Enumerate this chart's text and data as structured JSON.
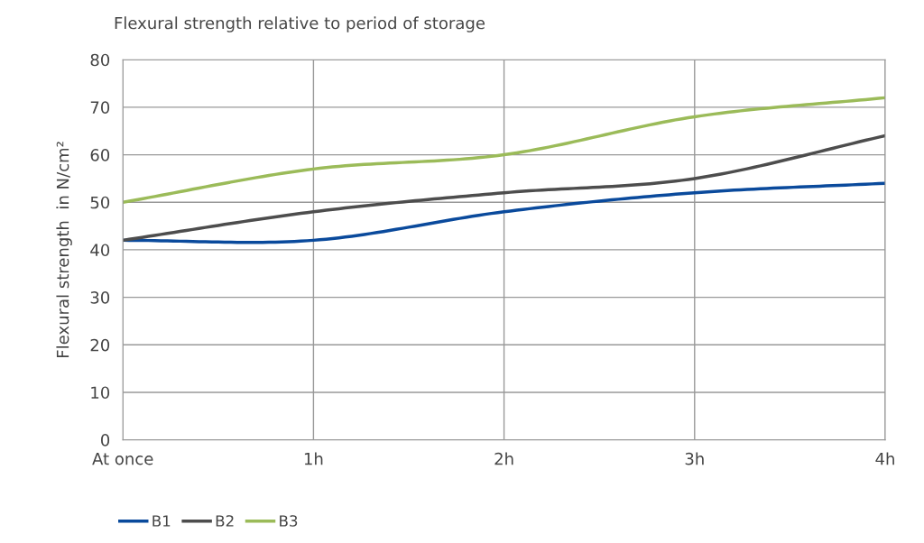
{
  "chart_data": {
    "type": "line",
    "title": "Flexural strength relative to period of storage",
    "ylabel": "Flexural strength  in N/cm²",
    "categories": [
      "At once",
      "1h",
      "2h",
      "3h",
      "4h"
    ],
    "series": [
      {
        "name": "B1",
        "color": "#0a4a9c",
        "values": [
          42,
          42,
          48,
          52,
          54
        ]
      },
      {
        "name": "B2",
        "color": "#4d4d4d",
        "values": [
          42,
          48,
          52,
          55,
          64
        ]
      },
      {
        "name": "B3",
        "color": "#9bbb59",
        "values": [
          50,
          57,
          60,
          68,
          72
        ]
      }
    ],
    "ylim": [
      0,
      80
    ],
    "yticks": [
      0,
      10,
      20,
      30,
      40,
      50,
      60,
      70,
      80
    ],
    "grid": true,
    "legend": "bottom left",
    "marker": "none",
    "line_style": "solid"
  }
}
